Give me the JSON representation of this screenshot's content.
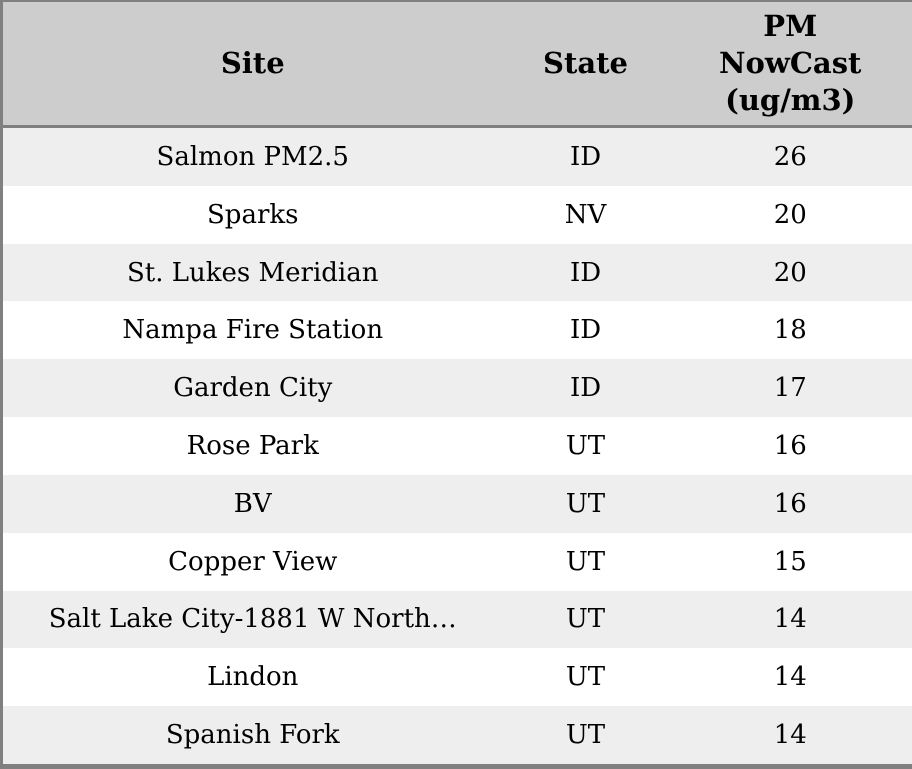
{
  "chart_data": {
    "type": "table",
    "title": "",
    "columns": [
      "Site",
      "State",
      "PM NowCast (ug/m3)"
    ],
    "rows": [
      [
        "Salmon PM2.5",
        "ID",
        26
      ],
      [
        "Sparks",
        "NV",
        20
      ],
      [
        "St. Lukes Meridian",
        "ID",
        20
      ],
      [
        "Nampa Fire Station",
        "ID",
        18
      ],
      [
        "Garden City",
        "ID",
        17
      ],
      [
        "Rose Park",
        "UT",
        16
      ],
      [
        "BV",
        "UT",
        16
      ],
      [
        "Copper View",
        "UT",
        15
      ],
      [
        "Salt Lake City-1881 W North…",
        "UT",
        14
      ],
      [
        "Lindon",
        "UT",
        14
      ],
      [
        "Spanish Fork",
        "UT",
        14
      ]
    ]
  },
  "colors": {
    "header_bg": "#cdcdcd",
    "row_odd": "#eeeeee",
    "row_even": "#ffffff",
    "border": "#808080",
    "text": "#000000"
  }
}
